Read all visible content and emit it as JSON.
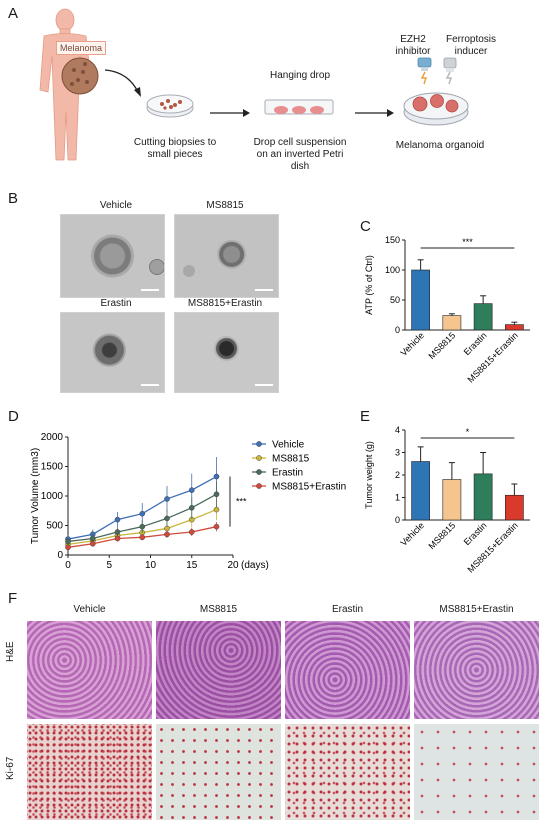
{
  "panel_letters": [
    "A",
    "B",
    "C",
    "D",
    "E",
    "F"
  ],
  "panel_a": {
    "melanoma_label": "Melanoma",
    "step1_caption": "Cutting biopsies to small pieces",
    "step2_title": "Hanging drop",
    "step2_caption": "Drop cell suspension on an inverted Petri dish",
    "inhibitor_label": "EZH2 inhibitor",
    "inducer_label": "Ferroptosis inducer",
    "step3_caption": "Melanoma organoid"
  },
  "panel_b": {
    "labels": [
      "Vehicle",
      "MS8815",
      "Erastin",
      "MS8815+Erastin"
    ]
  },
  "panel_f": {
    "columns": [
      "Vehicle",
      "MS8815",
      "Erastin",
      "MS8815+Erastin"
    ],
    "rows": [
      "H&E",
      "Ki-67"
    ]
  },
  "chart_data": [
    {
      "id": "C",
      "type": "bar",
      "categories": [
        "Vehicle",
        "MS8815",
        "Erastin",
        "MS8815+Erastin"
      ],
      "values": [
        100,
        24,
        44,
        9
      ],
      "errors": [
        17,
        3,
        13,
        4
      ],
      "colors": [
        "#2e75b6",
        "#f4c58f",
        "#2e7d5b",
        "#d93a2b"
      ],
      "ylabel": "ATP (% of Ctrl)",
      "ylim": [
        0,
        150
      ],
      "yticks": [
        0,
        50,
        100,
        150
      ],
      "significance": "***"
    },
    {
      "id": "D",
      "type": "line",
      "x": [
        0,
        3,
        6,
        9,
        12,
        15,
        18
      ],
      "series": [
        {
          "name": "Vehicle",
          "color": "#3f6fb5",
          "values": [
            270,
            350,
            600,
            700,
            950,
            1100,
            1330
          ],
          "errors": [
            60,
            80,
            130,
            180,
            220,
            280,
            330
          ]
        },
        {
          "name": "MS8815",
          "color": "#c8b63a",
          "values": [
            180,
            240,
            330,
            380,
            450,
            600,
            770
          ],
          "errors": [
            40,
            50,
            60,
            90,
            100,
            130,
            180
          ]
        },
        {
          "name": "Erastin",
          "color": "#4b6b5c",
          "values": [
            230,
            280,
            390,
            480,
            620,
            800,
            1030
          ],
          "errors": [
            50,
            60,
            80,
            110,
            140,
            180,
            220
          ]
        },
        {
          "name": "MS8815+Erastin",
          "color": "#d04a3c",
          "values": [
            130,
            190,
            280,
            300,
            350,
            390,
            480
          ],
          "errors": [
            30,
            40,
            50,
            50,
            60,
            70,
            80
          ]
        }
      ],
      "ylabel": "Tumor Volume (mm3)",
      "xlabel": "(days)",
      "xlim": [
        0,
        20
      ],
      "ylim": [
        0,
        2000
      ],
      "xticks": [
        0,
        5,
        10,
        15,
        20
      ],
      "yticks": [
        0,
        500,
        1000,
        1500,
        2000
      ],
      "significance": "***"
    },
    {
      "id": "E",
      "type": "bar",
      "categories": [
        "Vehicle",
        "MS8815",
        "Erastin",
        "MS8815+Erastin"
      ],
      "values": [
        2.6,
        1.8,
        2.05,
        1.1
      ],
      "errors": [
        0.65,
        0.75,
        0.95,
        0.5
      ],
      "colors": [
        "#2e75b6",
        "#f4c58f",
        "#2e7d5b",
        "#d93a2b"
      ],
      "ylabel": "Tumor weight (g)",
      "ylim": [
        0,
        4
      ],
      "yticks": [
        0,
        1,
        2,
        3,
        4
      ],
      "significance": "*"
    }
  ]
}
